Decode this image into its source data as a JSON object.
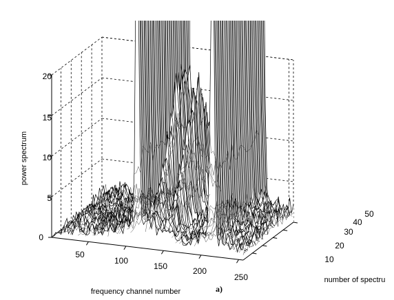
{
  "chart_data": {
    "type": "surface",
    "view": "3d-waterfall",
    "xlabel": "frequency channel number",
    "ylabel": "number of spectru",
    "zlabel": "power spectrum",
    "panel_label": "a)",
    "xlim": [
      1,
      256
    ],
    "ylim": [
      1,
      50
    ],
    "zlim": [
      0,
      20
    ],
    "x_ticks": [
      "50",
      "100",
      "150",
      "200",
      "250"
    ],
    "y_ticks": [
      "10",
      "20",
      "30",
      "40",
      "50"
    ],
    "z_ticks": [
      "0",
      "5",
      "10",
      "15",
      "20"
    ],
    "grid": true,
    "line_color": "#000000",
    "peaks": [
      {
        "frequency_channel": 115,
        "power": 40,
        "note": "clipped above axis top"
      },
      {
        "frequency_channel": 135,
        "power": 16
      },
      {
        "frequency_channel": 155,
        "power": 14
      },
      {
        "frequency_channel": 215,
        "power": 40,
        "note": "clipped above axis top"
      }
    ]
  }
}
